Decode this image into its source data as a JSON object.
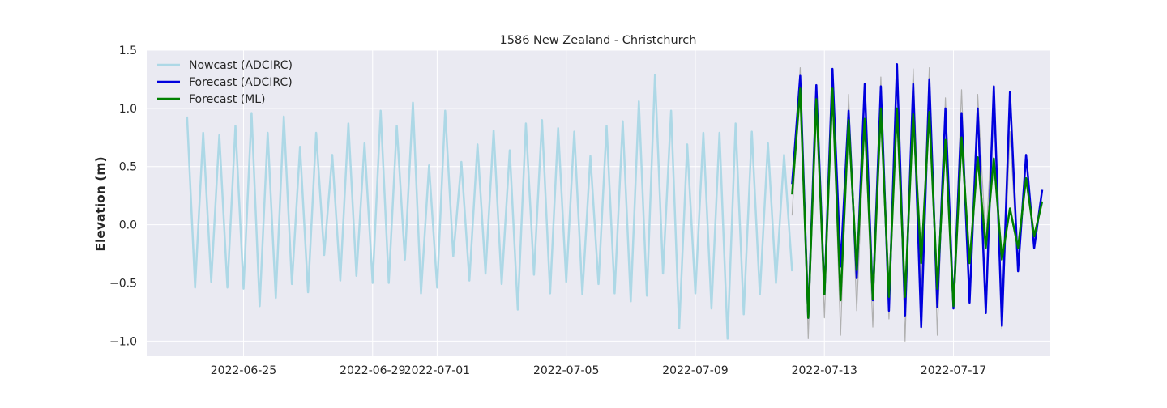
{
  "chart_data": {
    "type": "line",
    "title": "1586 New Zealand - Christchurch",
    "xlabel": "",
    "ylabel": "Elevation (m)",
    "x_axis_type": "date",
    "xlim": [
      "2022-06-22T00:00",
      "2022-07-20T00:00"
    ],
    "ylim": [
      -1.13,
      1.5
    ],
    "x_ticks": [
      "2022-06-25",
      "2022-06-29",
      "2022-07-01",
      "2022-07-05",
      "2022-07-09",
      "2022-07-13",
      "2022-07-17"
    ],
    "y_ticks": [
      -1.0,
      -0.5,
      0.0,
      0.5,
      1.0,
      1.5
    ],
    "grid": true,
    "legend_position": "top-left",
    "background_color": "#eaeaf2",
    "series": [
      {
        "name": "Nowcast (ADCIRC)",
        "color": "#add8e6",
        "x": [
          "2022-06-23T06:00",
          "2022-06-23T12:00",
          "2022-06-23T18:00",
          "2022-06-24T00:00",
          "2022-06-24T06:00",
          "2022-06-24T12:00",
          "2022-06-24T18:00",
          "2022-06-25T00:00",
          "2022-06-25T06:00",
          "2022-06-25T12:00",
          "2022-06-25T18:00",
          "2022-06-26T00:00",
          "2022-06-26T06:00",
          "2022-06-26T12:00",
          "2022-06-26T18:00",
          "2022-06-27T00:00",
          "2022-06-27T06:00",
          "2022-06-27T12:00",
          "2022-06-27T18:00",
          "2022-06-28T00:00",
          "2022-06-28T06:00",
          "2022-06-28T12:00",
          "2022-06-28T18:00",
          "2022-06-29T00:00",
          "2022-06-29T06:00",
          "2022-06-29T12:00",
          "2022-06-29T18:00",
          "2022-06-30T00:00",
          "2022-06-30T06:00",
          "2022-06-30T12:00",
          "2022-06-30T18:00",
          "2022-07-01T00:00",
          "2022-07-01T06:00",
          "2022-07-01T12:00",
          "2022-07-01T18:00",
          "2022-07-02T00:00",
          "2022-07-02T06:00",
          "2022-07-02T12:00",
          "2022-07-02T18:00",
          "2022-07-03T00:00",
          "2022-07-03T06:00",
          "2022-07-03T12:00",
          "2022-07-03T18:00",
          "2022-07-04T00:00",
          "2022-07-04T06:00",
          "2022-07-04T12:00",
          "2022-07-04T18:00",
          "2022-07-05T00:00",
          "2022-07-05T06:00",
          "2022-07-05T12:00",
          "2022-07-05T18:00",
          "2022-07-06T00:00",
          "2022-07-06T06:00",
          "2022-07-06T12:00",
          "2022-07-06T18:00",
          "2022-07-07T00:00",
          "2022-07-07T06:00",
          "2022-07-07T12:00",
          "2022-07-07T18:00",
          "2022-07-08T00:00",
          "2022-07-08T06:00",
          "2022-07-08T12:00",
          "2022-07-08T18:00",
          "2022-07-09T00:00",
          "2022-07-09T06:00",
          "2022-07-09T12:00",
          "2022-07-09T18:00",
          "2022-07-10T00:00",
          "2022-07-10T06:00",
          "2022-07-10T12:00",
          "2022-07-10T18:00",
          "2022-07-11T00:00",
          "2022-07-11T06:00",
          "2022-07-11T12:00",
          "2022-07-11T18:00",
          "2022-07-12T00:00"
        ],
        "values": [
          0.93,
          -0.54,
          0.79,
          -0.49,
          0.77,
          -0.54,
          0.85,
          -0.55,
          0.96,
          -0.7,
          0.79,
          -0.63,
          0.93,
          -0.51,
          0.67,
          -0.58,
          0.79,
          -0.26,
          0.6,
          -0.48,
          0.87,
          -0.44,
          0.7,
          -0.5,
          0.98,
          -0.5,
          0.85,
          -0.3,
          1.05,
          -0.59,
          0.51,
          -0.54,
          0.98,
          -0.27,
          0.54,
          -0.48,
          0.69,
          -0.42,
          0.81,
          -0.51,
          0.64,
          -0.73,
          0.87,
          -0.43,
          0.9,
          -0.59,
          0.83,
          -0.49,
          0.8,
          -0.6,
          0.59,
          -0.51,
          0.85,
          -0.59,
          0.89,
          -0.66,
          1.06,
          -0.61,
          1.29,
          -0.42,
          0.98,
          -0.89,
          0.69,
          -0.59,
          0.79,
          -0.72,
          0.79,
          -0.98,
          0.87,
          -0.77,
          0.8,
          -0.6,
          0.7,
          -0.5,
          0.6,
          -0.4
        ]
      },
      {
        "name": "Forecast (ADCIRC)",
        "color": "#0000dd",
        "x": [
          "2022-07-12T00:00",
          "2022-07-12T06:00",
          "2022-07-12T12:00",
          "2022-07-12T18:00",
          "2022-07-13T00:00",
          "2022-07-13T06:00",
          "2022-07-13T12:00",
          "2022-07-13T18:00",
          "2022-07-14T00:00",
          "2022-07-14T06:00",
          "2022-07-14T12:00",
          "2022-07-14T18:00",
          "2022-07-15T00:00",
          "2022-07-15T06:00",
          "2022-07-15T12:00",
          "2022-07-15T18:00",
          "2022-07-16T00:00",
          "2022-07-16T06:00",
          "2022-07-16T12:00",
          "2022-07-16T18:00",
          "2022-07-17T00:00",
          "2022-07-17T06:00",
          "2022-07-17T12:00",
          "2022-07-17T18:00",
          "2022-07-18T00:00",
          "2022-07-18T06:00",
          "2022-07-18T12:00",
          "2022-07-18T18:00",
          "2022-07-19T00:00",
          "2022-07-19T06:00",
          "2022-07-19T12:00",
          "2022-07-19T18:00"
        ],
        "values": [
          0.35,
          1.28,
          -0.8,
          1.2,
          -0.6,
          1.34,
          -0.36,
          0.98,
          -0.46,
          1.21,
          -0.65,
          1.19,
          -0.74,
          1.38,
          -0.78,
          1.21,
          -0.88,
          1.25,
          -0.71,
          1.0,
          -0.72,
          0.96,
          -0.67,
          1.0,
          -0.76,
          1.19,
          -0.87,
          1.14,
          -0.4,
          0.6,
          -0.2,
          0.3
        ]
      },
      {
        "name": "Forecast (ML)",
        "color": "#008000",
        "x": [
          "2022-07-12T00:00",
          "2022-07-12T06:00",
          "2022-07-12T12:00",
          "2022-07-12T18:00",
          "2022-07-13T00:00",
          "2022-07-13T06:00",
          "2022-07-13T12:00",
          "2022-07-13T18:00",
          "2022-07-14T00:00",
          "2022-07-14T06:00",
          "2022-07-14T12:00",
          "2022-07-14T18:00",
          "2022-07-15T00:00",
          "2022-07-15T06:00",
          "2022-07-15T12:00",
          "2022-07-15T18:00",
          "2022-07-16T00:00",
          "2022-07-16T06:00",
          "2022-07-16T12:00",
          "2022-07-16T18:00",
          "2022-07-17T00:00",
          "2022-07-17T06:00",
          "2022-07-17T12:00",
          "2022-07-17T18:00",
          "2022-07-18T00:00",
          "2022-07-18T06:00",
          "2022-07-18T12:00",
          "2022-07-18T18:00",
          "2022-07-19T00:00",
          "2022-07-19T06:00",
          "2022-07-19T12:00",
          "2022-07-19T18:00"
        ],
        "values": [
          0.26,
          1.17,
          -0.8,
          1.08,
          -0.6,
          1.17,
          -0.65,
          0.9,
          -0.39,
          0.91,
          -0.64,
          1.0,
          -0.62,
          1.0,
          -0.62,
          0.95,
          -0.33,
          0.97,
          -0.55,
          0.73,
          -0.7,
          0.75,
          -0.33,
          0.58,
          -0.2,
          0.57,
          -0.3,
          0.14,
          -0.2,
          0.4,
          -0.1,
          0.2
        ]
      },
      {
        "name": "",
        "color": "#b0b0b0",
        "x": [
          "2022-07-12T00:00",
          "2022-07-12T06:00",
          "2022-07-12T12:00",
          "2022-07-12T18:00",
          "2022-07-13T00:00",
          "2022-07-13T06:00",
          "2022-07-13T12:00",
          "2022-07-13T18:00",
          "2022-07-14T00:00",
          "2022-07-14T06:00",
          "2022-07-14T12:00",
          "2022-07-14T18:00",
          "2022-07-15T00:00",
          "2022-07-15T06:00",
          "2022-07-15T12:00",
          "2022-07-15T18:00",
          "2022-07-16T00:00",
          "2022-07-16T06:00",
          "2022-07-16T12:00",
          "2022-07-16T18:00",
          "2022-07-17T00:00",
          "2022-07-17T06:00",
          "2022-07-17T12:00",
          "2022-07-17T18:00",
          "2022-07-18T00:00",
          "2022-07-18T06:00",
          "2022-07-18T12:00",
          "2022-07-18T18:00",
          "2022-07-19T00:00",
          "2022-07-19T06:00",
          "2022-07-19T12:00",
          "2022-07-19T18:00"
        ],
        "values": [
          0.08,
          1.35,
          -0.98,
          1.1,
          -0.8,
          1.2,
          -0.95,
          1.12,
          -0.74,
          0.9,
          -0.88,
          1.27,
          -0.81,
          1.3,
          -1.0,
          1.34,
          -0.5,
          1.35,
          -0.95,
          1.09,
          -0.71,
          1.16,
          -0.68,
          1.12,
          -0.15,
          1.1,
          -0.9,
          0.8,
          -0.4,
          0.6,
          -0.2,
          0.3
        ]
      }
    ]
  }
}
